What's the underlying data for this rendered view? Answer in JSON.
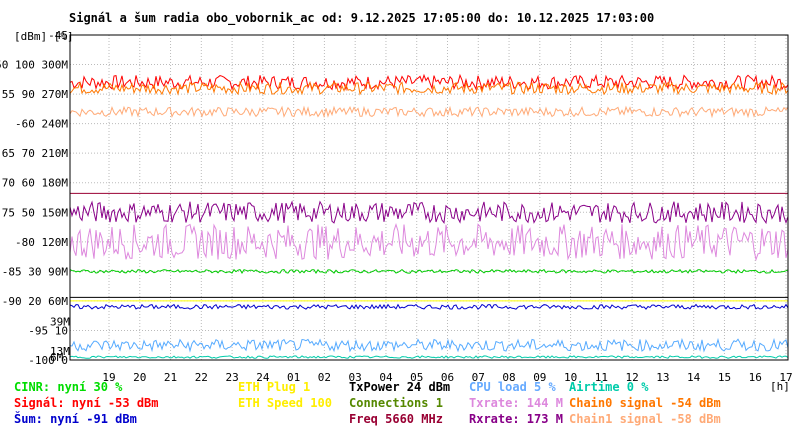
{
  "chart_data": {
    "type": "line",
    "title": "Signál a šum radia obo_vobornik_ac od: 9.12.2025 17:05:00 do: 10.12.2025 17:03:00",
    "y_unit_label": "[dBm] [%]",
    "x_unit_label": "[h]",
    "ylim_dbm": [
      -100,
      -45
    ],
    "y_ticks": [
      {
        "dbm": -45,
        "label": "-45"
      },
      {
        "dbm": -50,
        "label": "-50 100 300M"
      },
      {
        "dbm": -55,
        "label": "-55 90 270M"
      },
      {
        "dbm": -60,
        "label": "-60 240M"
      },
      {
        "dbm": -65,
        "label": "-65 70 210M"
      },
      {
        "dbm": -70,
        "label": "-70 60 180M"
      },
      {
        "dbm": -75,
        "label": "-75 50 150M"
      },
      {
        "dbm": -80,
        "label": "-80 120M"
      },
      {
        "dbm": -85,
        "label": "-85 30 90M"
      },
      {
        "dbm": -90,
        "label": "-90 20 60M"
      },
      {
        "dbm": -95,
        "label": "-95 10"
      },
      {
        "dbm": -100,
        "label": "-100 0"
      }
    ],
    "x_ticks": [
      "19",
      "20",
      "21",
      "22",
      "23",
      "24",
      "01",
      "02",
      "03",
      "04",
      "05",
      "06",
      "07",
      "08",
      "09",
      "10",
      "11",
      "12",
      "13",
      "14",
      "15",
      "16",
      "17"
    ],
    "inline_labels": [
      {
        "text": "39M",
        "dbm": -93.5,
        "color": "#dd88dd"
      },
      {
        "text": "13M",
        "dbm": -98.5,
        "color": "#dd88dd"
      },
      {
        "text": "6M",
        "dbm": -99.5,
        "color": "#cc00cc"
      }
    ],
    "series": [
      {
        "name": "Signál",
        "color": "#ff0000",
        "unit": "dBm",
        "level": -53
      },
      {
        "name": "Chain0 signal",
        "color": "#ff7700",
        "unit": "dBm",
        "level": -54
      },
      {
        "name": "Chain1 signal",
        "color": "#ffaa77",
        "unit": "dBm",
        "level": -58
      },
      {
        "name": "Txrate",
        "color": "#dd88dd",
        "unit": "Mbps",
        "level": 144
      },
      {
        "name": "Rxrate",
        "color": "#880088",
        "unit": "Mbps",
        "level": 173
      },
      {
        "name": "CINR",
        "color": "#00cc00",
        "unit": "%",
        "level": 30
      },
      {
        "name": "Šum",
        "color": "#0000cc",
        "unit": "dBm",
        "level": -91
      },
      {
        "name": "CPU load",
        "color": "#55aaff",
        "unit": "%",
        "level": 5
      },
      {
        "name": "ETH Plug",
        "color": "#ffff00",
        "unit": "",
        "level": 1
      },
      {
        "name": "Airtime",
        "color": "#00ccaa",
        "unit": "%",
        "level": 0
      }
    ],
    "reference_lines": [
      {
        "dbm": -71.8,
        "color": "#990033"
      },
      {
        "dbm": -89.4,
        "color": "#000000"
      }
    ]
  },
  "legend": [
    {
      "text": "CINR: nyní 30 %",
      "color": "#00dd00",
      "col": 0,
      "row": 0
    },
    {
      "text": "Signál: nyní -53 dBm",
      "color": "#ff0000",
      "col": 0,
      "row": 1
    },
    {
      "text": "Šum: nyní -91 dBm",
      "color": "#0000cc",
      "col": 0,
      "row": 2
    },
    {
      "text": "ETH Plug 1",
      "color": "#ffee00",
      "col": 1,
      "row": 0
    },
    {
      "text": "ETH Speed 100",
      "color": "#ffee00",
      "col": 1,
      "row": 1
    },
    {
      "text": "TxPower 24 dBm",
      "color": "#000000",
      "col": 2,
      "row": 0
    },
    {
      "text": "Connections 1",
      "color": "#558800",
      "col": 2,
      "row": 1
    },
    {
      "text": "Freq 5660 MHz",
      "color": "#990033",
      "col": 2,
      "row": 2
    },
    {
      "text": "CPU load 5 %",
      "color": "#66aaff",
      "col": 3,
      "row": 0
    },
    {
      "text": "Txrate: 144 M",
      "color": "#dd88dd",
      "col": 3,
      "row": 1
    },
    {
      "text": "Rxrate: 173 M",
      "color": "#880088",
      "col": 3,
      "row": 2
    },
    {
      "text": "Airtime 0 %",
      "color": "#00ccaa",
      "col": 4,
      "row": 0
    },
    {
      "text": "Chain0 signal -54 dBm",
      "color": "#ff7700",
      "col": 4,
      "row": 1
    },
    {
      "text": "Chain1 signal -58 dBm",
      "color": "#ffaa77",
      "col": 4,
      "row": 2
    }
  ]
}
